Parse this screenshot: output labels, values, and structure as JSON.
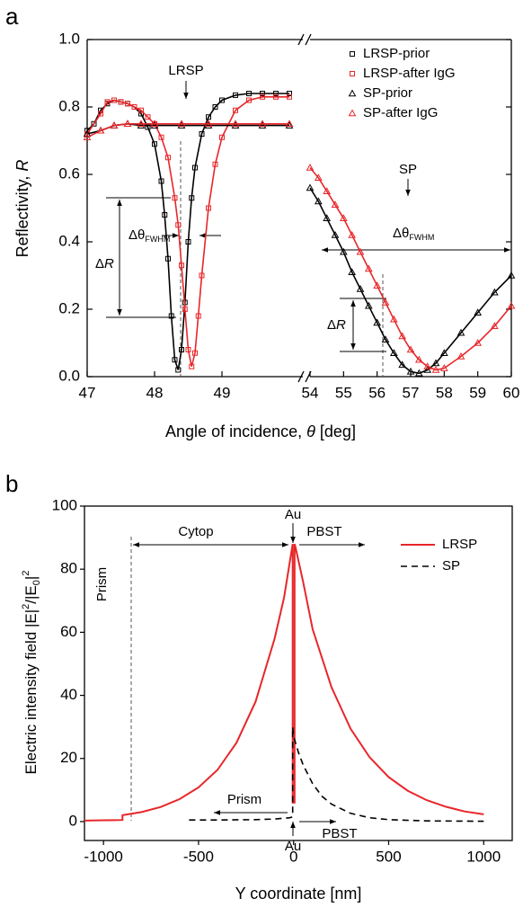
{
  "chart_data": [
    {
      "type": "scatter",
      "panel": "a",
      "xlabel": [
        "Angle of incidence, ",
        "θ",
        " [deg]"
      ],
      "ylabel": [
        "Reflectivity, ",
        "R"
      ],
      "xlim": [
        47,
        60
      ],
      "x_break": [
        50.2,
        54
      ],
      "xticks": [
        47,
        48,
        49,
        54,
        55,
        56,
        57,
        58,
        59,
        60
      ],
      "ylim": [
        0,
        1
      ],
      "yticks": [
        {
          "value": 0,
          "label": "0.0"
        },
        {
          "value": 0.2,
          "label": "0.2"
        },
        {
          "value": 0.4,
          "label": "0.4"
        },
        {
          "value": 0.6,
          "label": "0.6"
        },
        {
          "value": 0.8,
          "label": "0.8"
        },
        {
          "value": 1,
          "label": "1.0"
        }
      ],
      "legend": "upper right",
      "series": [
        {
          "name": "LRSP-prior",
          "color": "#000000",
          "marker": "square",
          "line": true,
          "x": [
            47.0,
            47.1,
            47.2,
            47.3,
            47.4,
            47.5,
            47.6,
            47.7,
            47.8,
            47.9,
            48.0,
            48.1,
            48.15,
            48.2,
            48.25,
            48.3,
            48.35,
            48.4,
            48.45,
            48.5,
            48.55,
            48.6,
            48.7,
            48.8,
            48.9,
            49.0,
            49.2,
            49.4,
            49.6,
            49.8,
            50.0
          ],
          "values": [
            0.73,
            0.75,
            0.79,
            0.81,
            0.82,
            0.815,
            0.81,
            0.8,
            0.78,
            0.74,
            0.69,
            0.58,
            0.48,
            0.35,
            0.18,
            0.05,
            0.02,
            0.08,
            0.22,
            0.4,
            0.53,
            0.62,
            0.72,
            0.77,
            0.8,
            0.82,
            0.835,
            0.84,
            0.84,
            0.84,
            0.84
          ]
        },
        {
          "name": "LRSP-after IgG",
          "color": "#e8262a",
          "marker": "square",
          "line": true,
          "x": [
            47.0,
            47.2,
            47.3,
            47.4,
            47.5,
            47.6,
            47.7,
            47.8,
            47.9,
            48.0,
            48.1,
            48.2,
            48.3,
            48.35,
            48.4,
            48.45,
            48.5,
            48.55,
            48.6,
            48.65,
            48.7,
            48.8,
            48.9,
            49.0,
            49.2,
            49.4,
            49.6,
            49.8,
            50.0
          ],
          "values": [
            0.72,
            0.78,
            0.815,
            0.82,
            0.815,
            0.81,
            0.8,
            0.79,
            0.77,
            0.75,
            0.71,
            0.65,
            0.53,
            0.45,
            0.33,
            0.2,
            0.08,
            0.03,
            0.07,
            0.18,
            0.3,
            0.5,
            0.63,
            0.71,
            0.79,
            0.82,
            0.83,
            0.83,
            0.83
          ]
        },
        {
          "name": "SP-prior",
          "color": "#000000",
          "marker": "triangle",
          "line": true,
          "x": [
            47.0,
            47.2,
            47.4,
            47.6,
            47.8,
            48.0,
            48.4,
            48.8,
            49.2,
            49.6,
            50.0,
            54.0,
            54.25,
            54.5,
            54.75,
            55.0,
            55.25,
            55.5,
            55.75,
            56.0,
            56.25,
            56.5,
            56.75,
            57.0,
            57.25,
            57.5,
            57.75,
            58.0,
            58.5,
            59.0,
            59.5,
            60.0
          ],
          "values": [
            0.72,
            0.73,
            0.745,
            0.75,
            0.745,
            0.745,
            0.745,
            0.745,
            0.745,
            0.745,
            0.745,
            0.56,
            0.52,
            0.47,
            0.42,
            0.37,
            0.31,
            0.26,
            0.21,
            0.16,
            0.11,
            0.07,
            0.035,
            0.015,
            0.01,
            0.02,
            0.04,
            0.07,
            0.13,
            0.19,
            0.25,
            0.3
          ]
        },
        {
          "name": "SP-after IgG",
          "color": "#e8262a",
          "marker": "triangle",
          "line": true,
          "x": [
            47.0,
            47.2,
            47.4,
            47.6,
            47.8,
            48.0,
            48.4,
            48.8,
            49.2,
            49.6,
            50.0,
            54.0,
            54.25,
            54.5,
            54.75,
            55.0,
            55.25,
            55.5,
            55.75,
            56.0,
            56.25,
            56.5,
            56.75,
            57.0,
            57.25,
            57.5,
            57.75,
            58.0,
            58.5,
            59.0,
            59.5,
            60.0
          ],
          "values": [
            0.71,
            0.73,
            0.745,
            0.75,
            0.75,
            0.75,
            0.75,
            0.75,
            0.75,
            0.75,
            0.75,
            0.62,
            0.59,
            0.55,
            0.51,
            0.47,
            0.42,
            0.37,
            0.32,
            0.27,
            0.22,
            0.17,
            0.12,
            0.08,
            0.05,
            0.03,
            0.02,
            0.025,
            0.06,
            0.1,
            0.15,
            0.21
          ]
        }
      ],
      "annotations": {
        "lrsp": "LRSP",
        "sp": "SP",
        "dtheta": [
          "Δθ",
          "FWHM"
        ],
        "dR": [
          "Δ",
          "R"
        ]
      }
    },
    {
      "type": "line",
      "panel": "b",
      "xlabel": "Y coordinate [nm]",
      "ylabel": [
        "Electric intensity field |E|",
        "2",
        "/|E",
        "0",
        "|",
        "2"
      ],
      "xlim": [
        -1100,
        1150
      ],
      "xticks": [
        -1000,
        -500,
        0,
        500,
        1000
      ],
      "ylim": [
        -6,
        100
      ],
      "yticks": [
        0,
        20,
        40,
        60,
        80,
        100
      ],
      "legend": "upper right",
      "series": [
        {
          "name": "LRSP",
          "color": "#e8262a",
          "dash": false,
          "x": [
            -1100,
            -1000,
            -900,
            -900,
            -800,
            -700,
            -600,
            -500,
            -400,
            -300,
            -200,
            -100,
            -50,
            -10,
            -5,
            -5,
            5,
            5,
            10,
            50,
            100,
            200,
            300,
            400,
            500,
            600,
            700,
            800,
            900,
            1000
          ],
          "values": [
            0.3,
            0.4,
            0.5,
            2.0,
            3.0,
            4.6,
            7.1,
            10.8,
            16.4,
            25,
            38,
            58,
            71,
            86,
            88,
            6,
            6,
            88,
            87,
            76,
            61,
            42.5,
            29.4,
            20.4,
            14.1,
            9.8,
            6.8,
            4.7,
            3.2,
            2.3
          ]
        },
        {
          "name": "SP",
          "color": "#000000",
          "dash": true,
          "x": [
            -550,
            -400,
            -200,
            -100,
            -20,
            -5,
            -5,
            0,
            25,
            50,
            100,
            150,
            200,
            300,
            400,
            500,
            700,
            1000
          ],
          "values": [
            0.5,
            0.5,
            0.6,
            0.8,
            1.2,
            1.5,
            30,
            27,
            22,
            18,
            12,
            8,
            5.5,
            2.6,
            1.2,
            0.6,
            0.2,
            0.1
          ]
        }
      ],
      "annotations": {
        "prism_top": "Prism",
        "cytop": "Cytop",
        "au_top": "Au",
        "pbst_top": "PBST",
        "prism_bottom": "Prism",
        "au_bottom": "Au",
        "pbst_bottom": "PBST"
      }
    }
  ]
}
